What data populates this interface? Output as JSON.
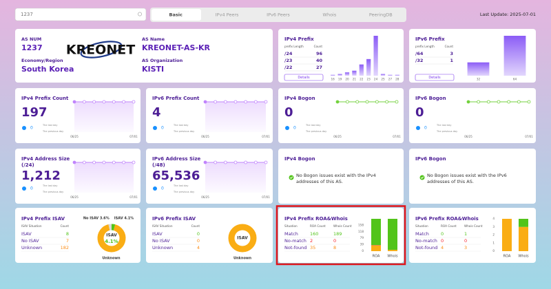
{
  "search": "1237",
  "tabs": [
    "Basic",
    "IPv4 Peers",
    "IPv6 Peers",
    "Whois",
    "PeeringDB"
  ],
  "last_update": "Last Update: 2025-07-01",
  "as_info": {
    "as_num_label": "AS NUM",
    "as_num": "1237",
    "logo": "KREONET",
    "as_name_label": "AS Name",
    "as_name": "KREONET-AS-KR",
    "region_label": "Economy/Region",
    "region": "South Korea",
    "org_label": "AS Organization",
    "org": "KISTI"
  },
  "ipv4_prefix": {
    "title": "IPv4 Prefix",
    "headers": [
      "prefix Length",
      "Count"
    ],
    "rows": [
      [
        "/24",
        96
      ],
      [
        "/23",
        40
      ],
      [
        "/22",
        27
      ]
    ],
    "button": "Details",
    "chart": {
      "type": "bar",
      "color": "#8b5cf6",
      "categories": [
        "16",
        "19",
        "20",
        "21",
        "22",
        "23",
        "24",
        "25",
        "27",
        "28"
      ],
      "values": [
        2,
        4,
        8,
        12,
        27,
        40,
        96,
        4,
        2,
        2
      ]
    }
  },
  "ipv6_prefix": {
    "title": "IPv6 Prefix",
    "headers": [
      "prefix Length",
      "Count"
    ],
    "rows": [
      [
        "/64",
        3
      ],
      [
        "/32",
        1
      ]
    ],
    "button": "Details",
    "chart": {
      "type": "bar",
      "color": "#8b5cf6",
      "categories": [
        "32",
        "64"
      ],
      "values": [
        1,
        3
      ]
    }
  },
  "stats": [
    {
      "title": "IPv4 Prefix Count",
      "value": 197,
      "delta": 0,
      "last_day": "The last day",
      "prev_day": "The previous day",
      "chart": {
        "type": "line",
        "color": "#c084fc",
        "area": true,
        "categories": [
          "06/25",
          null,
          null,
          null,
          null,
          null,
          "07/01"
        ],
        "values": [
          197,
          197,
          197,
          197,
          197,
          197,
          197
        ]
      }
    },
    {
      "title": "IPv6 Prefix Count",
      "value": 4,
      "delta": 0,
      "last_day": "The last day",
      "prev_day": "The previous day",
      "chart": {
        "type": "line",
        "color": "#c084fc",
        "area": true,
        "categories": [
          "06/25",
          null,
          null,
          null,
          null,
          null,
          "07/01"
        ],
        "values": [
          4,
          4,
          4,
          4,
          4,
          4,
          4
        ]
      }
    },
    {
      "title": "IPv4 Bogon",
      "value": 0,
      "delta": 0,
      "last_day": "The last day",
      "prev_day": "The previous day",
      "chart": {
        "type": "line",
        "color": "#73d13d",
        "area": false,
        "categories": [
          "06/25",
          null,
          null,
          null,
          null,
          null,
          "07/01"
        ],
        "values": [
          0,
          0,
          0,
          0,
          0,
          0,
          0
        ]
      }
    },
    {
      "title": "IPv6 Bogon",
      "value": 0,
      "delta": 0,
      "last_day": "The last day",
      "prev_day": "The previous day",
      "chart": {
        "type": "line",
        "color": "#73d13d",
        "area": false,
        "categories": [
          "06/25",
          null,
          null,
          null,
          null,
          null,
          "07/01"
        ],
        "values": [
          0,
          0,
          0,
          0,
          0,
          0,
          0
        ]
      }
    },
    {
      "title": "IPv4 Address Size",
      "subtitle": "(/24)",
      "value": 1212,
      "value_label": "1,212",
      "delta": 0,
      "last_day": "The last day",
      "prev_day": "The previous day",
      "chart": {
        "type": "line",
        "color": "#c084fc",
        "area": true,
        "categories": [
          "06/25",
          null,
          null,
          null,
          null,
          null,
          "07/01"
        ],
        "values": [
          1212,
          1212,
          1212,
          1212,
          1212,
          1212,
          1212
        ]
      }
    },
    {
      "title": "IPv6 Address Size",
      "subtitle": "(/48)",
      "value": 65536,
      "value_label": "65,536",
      "delta": 0,
      "last_day": "The last day",
      "prev_day": "The previous day",
      "chart": {
        "type": "line",
        "color": "#c084fc",
        "area": true,
        "categories": [
          "06/25",
          null,
          null,
          null,
          null,
          null,
          "07/01"
        ],
        "values": [
          65536,
          65536,
          65536,
          65536,
          65536,
          65536,
          65536
        ]
      }
    }
  ],
  "bogon_notes": [
    {
      "title": "IPv4 Bogon",
      "text": "No Bogon issues exist with the IPv4 addresses of this AS."
    },
    {
      "title": "IPv6 Bogon",
      "text": "No Bogon issues exist with the IPv6 addresses of this AS."
    }
  ],
  "isav": [
    {
      "title": "IPv4 Prefix ISAV",
      "headers": [
        "ISAV Situation",
        "Count"
      ],
      "rows": [
        [
          "ISAV",
          8
        ],
        [
          "No ISAV",
          7
        ],
        [
          "Unknown",
          182
        ]
      ],
      "donut": {
        "type": "pie",
        "colors": [
          "#52c41a",
          "#d9d9d9",
          "#faad14"
        ],
        "values": [
          4.1,
          3.6,
          92.3
        ],
        "value_labels": [
          "ISAV 4.1%",
          "No ISAV 3.6%",
          "Unknown"
        ],
        "center_label": "ISAV",
        "center_value": "4.1%"
      }
    },
    {
      "title": "IPv6 Prefix ISAV",
      "headers": [
        "ISAV Situation",
        "Count"
      ],
      "rows": [
        [
          "ISAV",
          0
        ],
        [
          "No ISAV",
          0
        ],
        [
          "Unknown",
          4
        ]
      ],
      "donut": {
        "type": "pie",
        "colors": [
          "#52c41a",
          "#d9d9d9",
          "#faad14"
        ],
        "values": [
          0,
          0,
          100
        ],
        "value_labels": [
          null,
          null,
          "Unknown"
        ],
        "center_label": "ISAV"
      }
    }
  ],
  "roa": [
    {
      "title": "IPv4 Prefix ROA&Whois",
      "headers": [
        "Situation",
        "ROA Count",
        "Whois Count"
      ],
      "rows": [
        [
          "Match",
          160,
          189
        ],
        [
          "No-match",
          2,
          0
        ],
        [
          "Not-found",
          35,
          8
        ]
      ],
      "chart": {
        "type": "bar",
        "stacked": true,
        "categories": [
          "ROA",
          "Whois"
        ],
        "ylim": [
          0,
          197
        ],
        "yticks": [
          0,
          39,
          79,
          118,
          158
        ],
        "series": [
          {
            "color": "#faad14",
            "values": [
              35,
              8
            ]
          },
          {
            "color": "#f5222d",
            "values": [
              2,
              0
            ]
          },
          {
            "color": "#52c41a",
            "values": [
              160,
              189
            ]
          }
        ]
      }
    },
    {
      "title": "IPv6 Prefix ROA&Whois",
      "headers": [
        "Situation",
        "ROA Count",
        "Whois Count"
      ],
      "rows": [
        [
          "Match",
          0,
          1
        ],
        [
          "No-match",
          0,
          0
        ],
        [
          "Not-found",
          4,
          3
        ]
      ],
      "chart": {
        "type": "bar",
        "stacked": true,
        "categories": [
          "ROA",
          "Whois"
        ],
        "ylim": [
          0,
          4
        ],
        "yticks": [
          0,
          1,
          2,
          3,
          4
        ],
        "series": [
          {
            "color": "#faad14",
            "values": [
              4,
              3
            ]
          },
          {
            "color": "#f5222d",
            "values": [
              0,
              0
            ]
          },
          {
            "color": "#52c41a",
            "values": [
              0,
              1
            ]
          }
        ]
      }
    }
  ]
}
